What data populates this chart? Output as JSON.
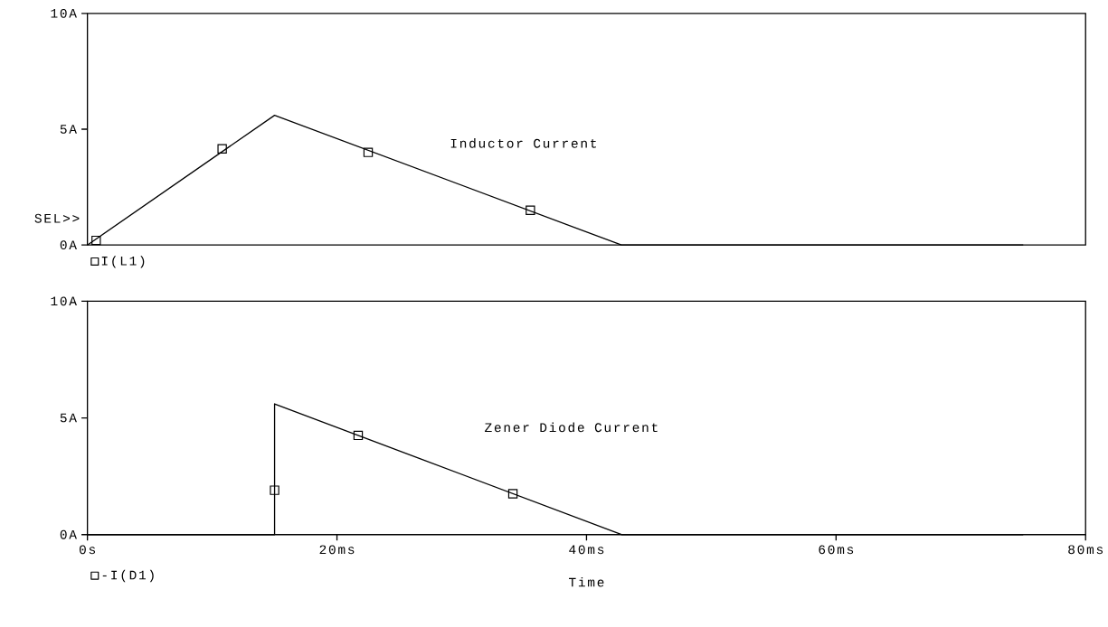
{
  "chart_data": [
    {
      "type": "line",
      "xlim": [
        0,
        80
      ],
      "ylim": [
        0,
        10
      ],
      "xticks": [
        {
          "value": 0,
          "label": null
        },
        {
          "value": 20,
          "label": null
        },
        {
          "value": 40,
          "label": null
        },
        {
          "value": 60,
          "label": null
        },
        {
          "value": 80,
          "label": null
        }
      ],
      "yticks": [
        {
          "value": 0,
          "label": "0A"
        },
        {
          "value": 5,
          "label": "5A"
        },
        {
          "value": 10,
          "label": "10A"
        }
      ],
      "tick_labels": "y",
      "legend": "bottom left",
      "series": [
        {
          "name": "I(L1)",
          "color": "#000000",
          "x": [
            0,
            15.0,
            42.8,
            75
          ],
          "values": [
            0,
            5.6,
            0,
            0
          ]
        },
        {
          "type": "scatter",
          "marker": "square",
          "color": "#000000",
          "x": [
            0.7,
            10.8,
            22.5,
            35.5
          ],
          "values": [
            0.2,
            4.15,
            4.0,
            1.5
          ]
        }
      ],
      "annotations": [
        "Inductor Current",
        "SEL>>"
      ]
    },
    {
      "type": "line",
      "xlim": [
        0,
        80
      ],
      "ylim": [
        0,
        10
      ],
      "xlabel": "Time",
      "xticks": [
        {
          "value": 0,
          "label": "0s"
        },
        {
          "value": 20,
          "label": "20ms"
        },
        {
          "value": 40,
          "label": "40ms"
        },
        {
          "value": 60,
          "label": "60ms"
        },
        {
          "value": 80,
          "label": "80ms"
        }
      ],
      "yticks": [
        {
          "value": 0,
          "label": "0A"
        },
        {
          "value": 5,
          "label": "5A"
        },
        {
          "value": 10,
          "label": "10A"
        }
      ],
      "legend": "bottom left",
      "series": [
        {
          "name": "-I(D1)",
          "color": "#000000",
          "x": [
            0,
            15.0,
            15.0,
            42.8,
            75
          ],
          "values": [
            0,
            0,
            5.6,
            0,
            0
          ]
        },
        {
          "type": "scatter",
          "marker": "square",
          "color": "#000000",
          "x": [
            15.0,
            21.7,
            34.1
          ],
          "values": [
            1.9,
            4.25,
            1.75
          ]
        }
      ],
      "annotations": [
        "Zener Diode Current"
      ]
    }
  ]
}
